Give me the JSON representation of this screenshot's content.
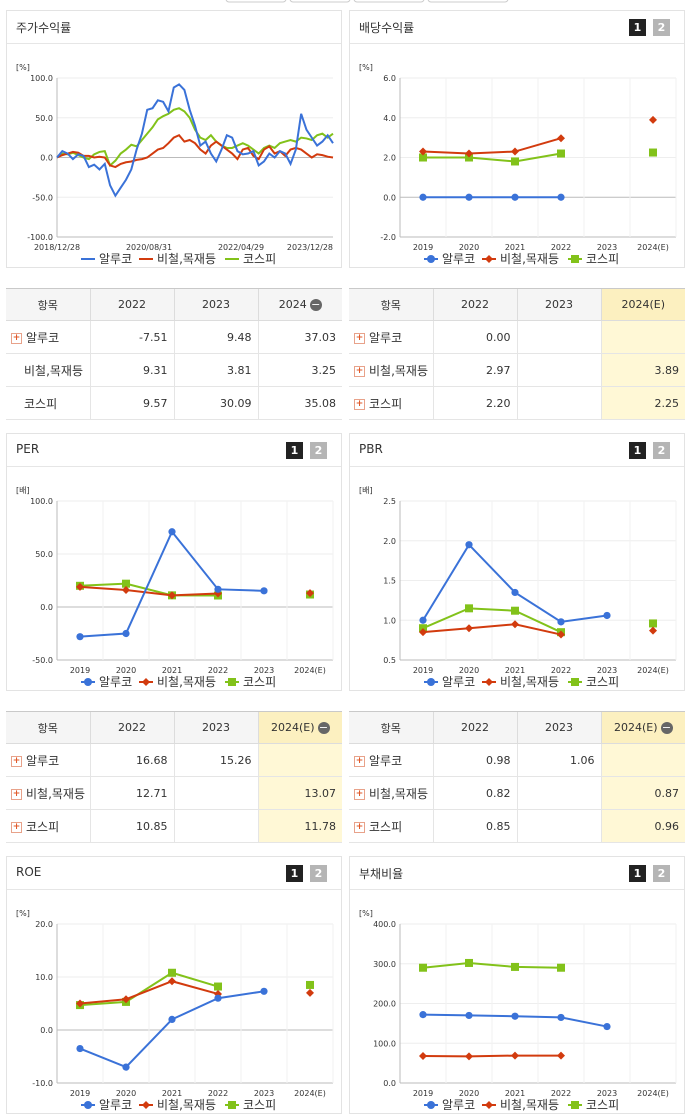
{
  "colors": {
    "alcoa": "#3a72d8",
    "steel": "#d23b0e",
    "kospi": "#82c21a"
  },
  "legend": [
    "알루코",
    "비철,목재등",
    "코스피"
  ],
  "stock": {
    "title": "주가수익률",
    "chart_data": {
      "type": "line",
      "unit": "[%]",
      "ylim": [
        -100,
        100
      ],
      "yticks": [
        "100.0",
        "50.0",
        "0.0",
        "-50.0",
        "-100.0"
      ],
      "xticks": [
        "2018/12/28",
        "2020/08/31",
        "2022/04/29",
        "2023/12/28"
      ],
      "series": [
        {
          "name": "알루코",
          "values": [
            0,
            8,
            5,
            -2,
            4,
            2,
            -12,
            -9,
            -15,
            -8,
            -35,
            -48,
            -38,
            -28,
            -15,
            10,
            30,
            60,
            62,
            72,
            70,
            58,
            88,
            92,
            85,
            60,
            40,
            15,
            20,
            5,
            -5,
            10,
            28,
            25,
            8,
            4,
            5,
            8,
            -10,
            -5,
            5,
            0,
            8,
            5,
            -8,
            10,
            55,
            35,
            25,
            15,
            20,
            28,
            18
          ]
        },
        {
          "name": "비철,목재등",
          "values": [
            0,
            3,
            5,
            7,
            6,
            2,
            2,
            0,
            1,
            0,
            -10,
            -12,
            -8,
            -6,
            -5,
            -3,
            -2,
            0,
            5,
            10,
            12,
            18,
            25,
            28,
            20,
            22,
            18,
            10,
            5,
            15,
            20,
            15,
            10,
            5,
            -2,
            10,
            12,
            2,
            -2,
            10,
            14,
            5,
            8,
            2,
            10,
            12,
            10,
            5,
            0,
            4,
            3,
            1,
            0
          ]
        },
        {
          "name": "코스피",
          "values": [
            0,
            5,
            4,
            6,
            3,
            0,
            -2,
            4,
            7,
            8,
            -10,
            -4,
            5,
            10,
            16,
            14,
            22,
            30,
            38,
            48,
            52,
            55,
            60,
            62,
            58,
            50,
            35,
            25,
            22,
            28,
            20,
            15,
            12,
            12,
            15,
            18,
            15,
            10,
            5,
            12,
            15,
            12,
            18,
            20,
            22,
            20,
            25,
            24,
            22,
            28,
            30,
            25,
            30
          ]
        }
      ]
    }
  },
  "dividend": {
    "title": "배당수익률",
    "chart_data": {
      "type": "line",
      "unit": "[%]",
      "ylim": [
        -2,
        6
      ],
      "yticks": [
        "6.0",
        "4.0",
        "2.0",
        "0.0",
        "-2.0"
      ],
      "xticks": [
        "2019",
        "2020",
        "2021",
        "2022",
        "2023",
        "2024(E)"
      ],
      "series": [
        {
          "name": "알루코",
          "values": [
            0.0,
            0.0,
            0.0,
            0.0,
            null,
            null
          ]
        },
        {
          "name": "비철,목재등",
          "values": [
            2.3,
            2.2,
            2.3,
            2.97,
            null,
            3.89
          ]
        },
        {
          "name": "코스피",
          "values": [
            2.0,
            2.0,
            1.8,
            2.2,
            null,
            2.25
          ]
        }
      ]
    }
  },
  "stock_table": {
    "headers": [
      "항목",
      "2022",
      "2023",
      "2024"
    ],
    "rows": [
      {
        "name": "알루코",
        "vals": [
          "-7.51",
          "9.48",
          "37.03"
        ]
      },
      {
        "name": "비철,목재등",
        "vals": [
          "9.31",
          "3.81",
          "3.25"
        ]
      },
      {
        "name": "코스피",
        "vals": [
          "9.57",
          "30.09",
          "35.08"
        ]
      }
    ]
  },
  "dividend_table": {
    "headers": [
      "항목",
      "2022",
      "2023",
      "2024(E)"
    ],
    "rows": [
      {
        "name": "알루코",
        "vals": [
          "0.00",
          "",
          ""
        ]
      },
      {
        "name": "비철,목재등",
        "vals": [
          "2.97",
          "",
          "3.89"
        ]
      },
      {
        "name": "코스피",
        "vals": [
          "2.20",
          "",
          "2.25"
        ]
      }
    ]
  },
  "per": {
    "title": "PER",
    "chart_data": {
      "type": "line",
      "unit": "[배]",
      "ylim": [
        -50,
        100
      ],
      "yticks": [
        "100.0",
        "50.0",
        "0.0",
        "-50.0"
      ],
      "xticks": [
        "2019",
        "2020",
        "2021",
        "2022",
        "2023",
        "2024(E)"
      ],
      "series": [
        {
          "name": "알루코",
          "values": [
            -28,
            -25,
            71,
            16.68,
            15.26,
            null
          ]
        },
        {
          "name": "비철,목재등",
          "values": [
            19,
            16,
            11,
            12.71,
            null,
            13.07
          ]
        },
        {
          "name": "코스피",
          "values": [
            20,
            22,
            11,
            10.85,
            null,
            11.78
          ]
        }
      ]
    }
  },
  "pbr": {
    "title": "PBR",
    "chart_data": {
      "type": "line",
      "unit": "[배]",
      "ylim": [
        0.5,
        2.5
      ],
      "yticks": [
        "2.5",
        "2.0",
        "1.5",
        "1.0",
        "0.5"
      ],
      "xticks": [
        "2019",
        "2020",
        "2021",
        "2022",
        "2023",
        "2024(E)"
      ],
      "series": [
        {
          "name": "알루코",
          "values": [
            1.0,
            1.95,
            1.35,
            0.98,
            1.06,
            null
          ]
        },
        {
          "name": "비철,목재등",
          "values": [
            0.85,
            0.9,
            0.95,
            0.82,
            null,
            0.87
          ]
        },
        {
          "name": "코스피",
          "values": [
            0.9,
            1.15,
            1.12,
            0.85,
            null,
            0.96
          ]
        }
      ]
    }
  },
  "per_table": {
    "headers": [
      "항목",
      "2022",
      "2023",
      "2024(E)"
    ],
    "rows": [
      {
        "name": "알루코",
        "vals": [
          "16.68",
          "15.26",
          ""
        ]
      },
      {
        "name": "비철,목재등",
        "vals": [
          "12.71",
          "",
          "13.07"
        ]
      },
      {
        "name": "코스피",
        "vals": [
          "10.85",
          "",
          "11.78"
        ]
      }
    ]
  },
  "pbr_table": {
    "headers": [
      "항목",
      "2022",
      "2023",
      "2024(E)"
    ],
    "rows": [
      {
        "name": "알루코",
        "vals": [
          "0.98",
          "1.06",
          ""
        ]
      },
      {
        "name": "비철,목재등",
        "vals": [
          "0.82",
          "",
          "0.87"
        ]
      },
      {
        "name": "코스피",
        "vals": [
          "0.85",
          "",
          "0.96"
        ]
      }
    ]
  },
  "roe": {
    "title": "ROE",
    "chart_data": {
      "type": "line",
      "unit": "[%]",
      "ylim": [
        -10,
        20
      ],
      "yticks": [
        "20.0",
        "10.0",
        "0.0",
        "-10.0"
      ],
      "xticks": [
        "2019",
        "2020",
        "2021",
        "2022",
        "2023",
        "2024(E)"
      ],
      "series": [
        {
          "name": "알루코",
          "values": [
            -3.5,
            -7,
            2,
            6,
            7.3,
            null
          ]
        },
        {
          "name": "비철,목재등",
          "values": [
            5,
            5.8,
            9.2,
            6.8,
            null,
            7
          ]
        },
        {
          "name": "코스피",
          "values": [
            4.7,
            5.3,
            10.8,
            8.2,
            null,
            8.5
          ]
        }
      ]
    }
  },
  "debt": {
    "title": "부채비율",
    "chart_data": {
      "type": "line",
      "unit": "[%]",
      "ylim": [
        0,
        400
      ],
      "yticks": [
        "400.0",
        "300.0",
        "200.0",
        "100.0",
        "0.0"
      ],
      "xticks": [
        "2019",
        "2020",
        "2021",
        "2022",
        "2023",
        "2024(E)"
      ],
      "series": [
        {
          "name": "알루코",
          "values": [
            172,
            170,
            168,
            165,
            142,
            null
          ]
        },
        {
          "name": "비철,목재등",
          "values": [
            68,
            67,
            69,
            69,
            null,
            null
          ]
        },
        {
          "name": "코스피",
          "values": [
            290,
            302,
            292,
            290,
            null,
            null
          ]
        }
      ]
    }
  }
}
